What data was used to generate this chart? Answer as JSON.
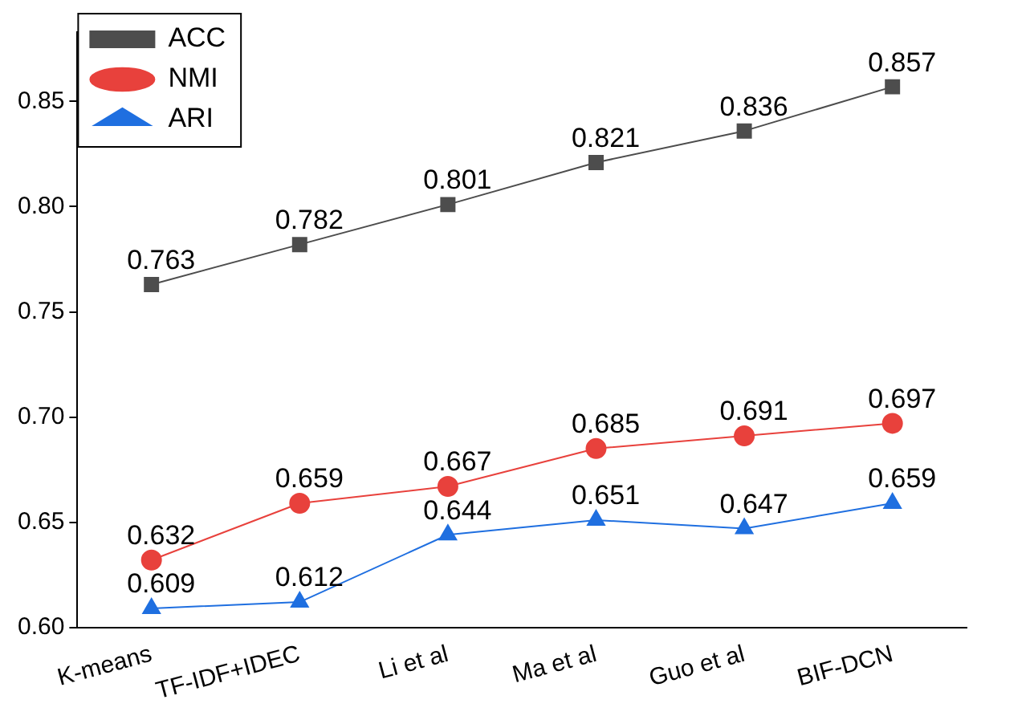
{
  "chart_data": {
    "type": "line",
    "categories": [
      "K-means",
      "TF-IDF+IDEC",
      "Li et al",
      "Ma et al",
      "Guo et al",
      "BIF-DCN"
    ],
    "series": [
      {
        "name": "ACC",
        "color": "#4d4d4d",
        "marker": "square",
        "values": [
          0.763,
          0.782,
          0.801,
          0.821,
          0.836,
          0.857
        ]
      },
      {
        "name": "NMI",
        "color": "#e8413c",
        "marker": "circle",
        "values": [
          0.632,
          0.659,
          0.667,
          0.685,
          0.691,
          0.697
        ]
      },
      {
        "name": "ARI",
        "color": "#1f6fe0",
        "marker": "triangle",
        "values": [
          0.609,
          0.612,
          0.644,
          0.651,
          0.647,
          0.659
        ]
      }
    ],
    "ylim": [
      0.6,
      0.883
    ],
    "yticks": [
      {
        "value": 0.6,
        "label": "0.60"
      },
      {
        "value": 0.65,
        "label": "0.65"
      },
      {
        "value": 0.7,
        "label": "0.70"
      },
      {
        "value": 0.75,
        "label": "0.75"
      },
      {
        "value": 0.8,
        "label": "0.80"
      },
      {
        "value": 0.85,
        "label": "0.85"
      }
    ],
    "data_labels": true,
    "legend": "top left",
    "grid": false
  }
}
